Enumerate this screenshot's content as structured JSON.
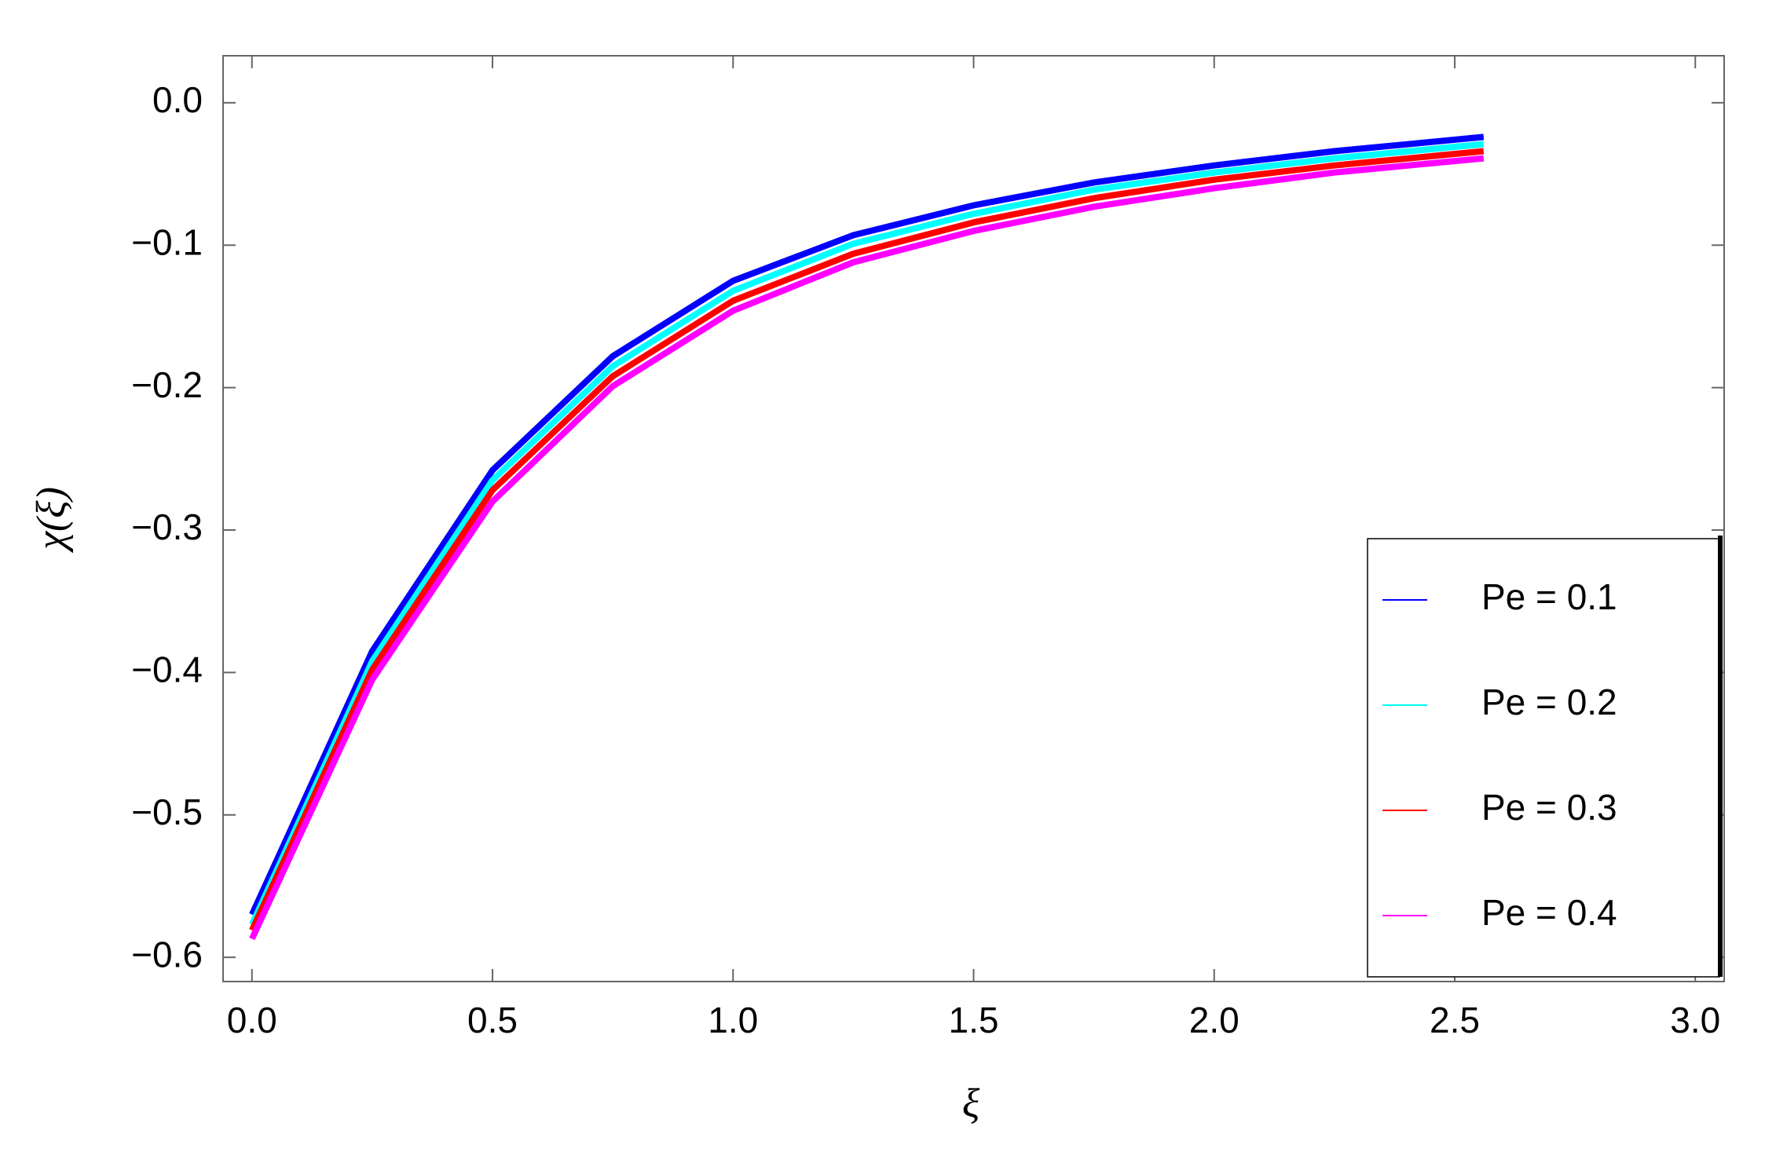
{
  "chart_data": {
    "type": "line",
    "x_label": "ξ",
    "y_label": "χ(ξ)",
    "x": [
      0,
      0.25,
      0.5,
      0.75,
      1.0,
      1.25,
      1.5,
      1.75,
      2.0,
      2.25,
      2.56
    ],
    "series": [
      {
        "name": "Pe = 0.1",
        "color": "#0000ff",
        "values": [
          -0.57,
          -0.385,
          -0.258,
          -0.178,
          -0.125,
          -0.093,
          -0.072,
          -0.056,
          -0.044,
          -0.034,
          -0.024
        ]
      },
      {
        "name": "Pe = 0.2",
        "color": "#00ffff",
        "values": [
          -0.577,
          -0.392,
          -0.265,
          -0.185,
          -0.132,
          -0.099,
          -0.078,
          -0.061,
          -0.049,
          -0.039,
          -0.029
        ]
      },
      {
        "name": "Pe = 0.3",
        "color": "#ff0000",
        "values": [
          -0.581,
          -0.398,
          -0.272,
          -0.192,
          -0.139,
          -0.106,
          -0.084,
          -0.067,
          -0.054,
          -0.044,
          -0.034
        ]
      },
      {
        "name": "Pe = 0.4",
        "color": "#ff00ff",
        "values": [
          -0.587,
          -0.405,
          -0.28,
          -0.199,
          -0.146,
          -0.112,
          -0.09,
          -0.073,
          -0.06,
          -0.049,
          -0.039
        ]
      }
    ],
    "xlim": [
      -0.06,
      3.06
    ],
    "ylim": [
      -0.617,
      0.033
    ],
    "xticks": [
      {
        "value": 0,
        "label": "0.0"
      },
      0.5,
      {
        "value": 1,
        "label": "1.0"
      },
      1.5,
      {
        "value": 2,
        "label": "2.0"
      },
      2.5,
      {
        "value": 3,
        "label": "3.0"
      }
    ],
    "yticks": [
      {
        "value": 0,
        "label": "0.0"
      },
      {
        "value": -0.1,
        "label": "−0.1"
      },
      {
        "value": -0.2,
        "label": "−0.2"
      },
      {
        "value": -0.3,
        "label": "−0.3"
      },
      {
        "value": -0.4,
        "label": "−0.4"
      },
      {
        "value": -0.5,
        "label": "−0.5"
      },
      {
        "value": -0.6,
        "label": "−0.6"
      }
    ],
    "legend": "lower right"
  }
}
